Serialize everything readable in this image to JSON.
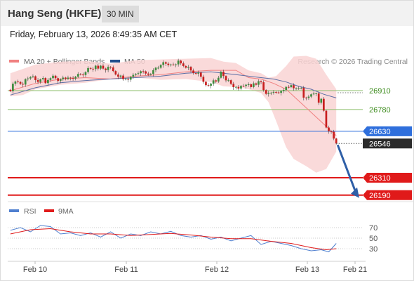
{
  "header": {
    "title": "Hang Seng (HKFE)",
    "timeframe": "30 MIN"
  },
  "datetime": "Friday, February 13, 2026 8:49:35 AM CET",
  "colors": {
    "bollinger_fill": "#f9d4d4",
    "ma20": "#f08080",
    "ma50": "#5b6ea5",
    "candle_up": "#3d8c3d",
    "candle_down": "#c81e1e",
    "resistance": "#8bbf6a",
    "pivot": "#2f6fdc",
    "support": "#e01a1a",
    "last_price": "#2b2b2b",
    "rsi": "#4f7fcf",
    "rsi_ma": "#e01a1a",
    "arrow": "#2f5fa7"
  },
  "chart_data": [
    {
      "type": "candlestick",
      "legend": [
        {
          "name": "MA 20 + Bollinger Bands",
          "color": "#f08080"
        },
        {
          "name": "MA 50",
          "color": "#1f4e8c"
        }
      ],
      "copyright": "Research © 2026 Trading Central",
      "x_ticks": [
        "Feb 10",
        "Feb 11",
        "Feb 12",
        "Feb 13",
        "Feb 21"
      ],
      "y_range": [
        26160,
        27070
      ],
      "levels": [
        {
          "label": "26910",
          "value": 26910,
          "kind": "resistance"
        },
        {
          "label": "26780",
          "value": 26780,
          "kind": "resistance"
        },
        {
          "label": "26630",
          "value": 26630,
          "kind": "pivot"
        },
        {
          "label": "26310",
          "value": 26310,
          "kind": "support"
        },
        {
          "label": "26190",
          "value": 26190,
          "kind": "support"
        }
      ],
      "last_price": {
        "label": "26546",
        "value": 26546
      },
      "ma20": [
        [
          0,
          26910
        ],
        [
          10,
          26960
        ],
        [
          20,
          26990
        ],
        [
          30,
          27000
        ],
        [
          40,
          26990
        ],
        [
          50,
          27010
        ],
        [
          60,
          27020
        ],
        [
          70,
          27040
        ],
        [
          80,
          27050
        ],
        [
          90,
          27050
        ],
        [
          95,
          27000
        ],
        [
          100,
          26990
        ],
        [
          105,
          26960
        ],
        [
          110,
          26920
        ],
        [
          115,
          26840
        ],
        [
          120,
          26760
        ],
        [
          125,
          26680
        ],
        [
          130,
          26600
        ]
      ],
      "ma50": [
        [
          0,
          26880
        ],
        [
          10,
          26930
        ],
        [
          20,
          26965
        ],
        [
          30,
          26980
        ],
        [
          40,
          26990
        ],
        [
          50,
          27000
        ],
        [
          60,
          27010
        ],
        [
          70,
          27030
        ],
        [
          80,
          27040
        ],
        [
          90,
          27020
        ],
        [
          95,
          27010
        ],
        [
          100,
          27000
        ],
        [
          105,
          26990
        ],
        [
          110,
          26970
        ],
        [
          115,
          26940
        ],
        [
          120,
          26920
        ],
        [
          125,
          26885
        ],
        [
          130,
          26860
        ]
      ],
      "bollinger_upper": [
        [
          0,
          27030
        ],
        [
          5,
          27060
        ],
        [
          10,
          27090
        ],
        [
          15,
          27100
        ],
        [
          20,
          27110
        ],
        [
          30,
          27115
        ],
        [
          40,
          27095
        ],
        [
          50,
          27120
        ],
        [
          60,
          27125
        ],
        [
          70,
          27130
        ],
        [
          80,
          27135
        ],
        [
          85,
          27110
        ],
        [
          90,
          27100
        ],
        [
          95,
          27050
        ],
        [
          100,
          27030
        ],
        [
          103,
          27000
        ],
        [
          106,
          27010
        ],
        [
          110,
          27080
        ],
        [
          113,
          27145
        ],
        [
          118,
          27150
        ],
        [
          122,
          27130
        ],
        [
          126,
          27020
        ],
        [
          130,
          26920
        ]
      ],
      "bollinger_lower": [
        [
          0,
          26870
        ],
        [
          5,
          26880
        ],
        [
          10,
          26920
        ],
        [
          15,
          26935
        ],
        [
          20,
          26950
        ],
        [
          30,
          26965
        ],
        [
          40,
          26990
        ],
        [
          50,
          27000
        ],
        [
          60,
          26985
        ],
        [
          70,
          26990
        ],
        [
          80,
          26970
        ],
        [
          85,
          26940
        ],
        [
          90,
          26935
        ],
        [
          95,
          26920
        ],
        [
          100,
          26895
        ],
        [
          103,
          26830
        ],
        [
          106,
          26700
        ],
        [
          110,
          26520
        ],
        [
          113,
          26440
        ],
        [
          118,
          26390
        ],
        [
          122,
          26345
        ],
        [
          126,
          26370
        ],
        [
          130,
          26490
        ]
      ],
      "closes": [
        26906,
        26958,
        26973,
        26970,
        26957,
        26952,
        26989,
        26994,
        27004,
        27009,
        26983,
        26970,
        26988,
        26997,
        26962,
        26984,
        26996,
        27013,
        26996,
        26977,
        26989,
        27000,
        26991,
        27000,
        26999,
        26993,
        27006,
        27025,
        27021,
        27018,
        27038,
        27066,
        27061,
        27059,
        27082,
        27062,
        27082,
        27062,
        27052,
        27074,
        27070,
        27045,
        27021,
        27006,
        27014,
        26989,
        26992,
        26986,
        27005,
        27019,
        27025,
        27030,
        27044,
        27043,
        27028,
        27020,
        27026,
        27051,
        27068,
        27068,
        27087,
        27106,
        27096,
        27086,
        27090,
        27089,
        27091,
        27117,
        27098,
        27080,
        27068,
        27074,
        27049,
        27031,
        27027,
        27035,
        27006,
        26971,
        26948,
        26944,
        26958,
        26981,
        26973,
        26999,
        27041,
        27011,
        26981,
        26982,
        26957,
        26934,
        26936,
        26924,
        26943,
        26942,
        26951,
        26954,
        26935,
        26960,
        26951,
        26975,
        26968,
        26914,
        26888,
        26896,
        26896,
        26901,
        26898,
        26895,
        26907,
        26915,
        26936,
        26934,
        26948,
        26927,
        26927,
        26927,
        26930,
        26862,
        26860,
        26869,
        26885,
        26890,
        26891,
        26827,
        26854,
        26772,
        26656,
        26630,
        26627,
        26580,
        26546
      ]
    },
    {
      "type": "line",
      "legend": [
        {
          "name": "RSI",
          "color": "#4f7fcf"
        },
        {
          "name": "9MA",
          "color": "#e01a1a"
        }
      ],
      "y_ticks": [
        "70",
        "50",
        "30"
      ],
      "y_range": [
        10,
        90
      ],
      "rsi": [
        [
          0,
          65
        ],
        [
          4,
          70
        ],
        [
          8,
          62
        ],
        [
          12,
          74
        ],
        [
          16,
          72
        ],
        [
          20,
          58
        ],
        [
          24,
          60
        ],
        [
          28,
          55
        ],
        [
          32,
          60
        ],
        [
          36,
          52
        ],
        [
          40,
          62
        ],
        [
          44,
          50
        ],
        [
          48,
          58
        ],
        [
          52,
          55
        ],
        [
          56,
          62
        ],
        [
          60,
          58
        ],
        [
          64,
          63
        ],
        [
          68,
          55
        ],
        [
          72,
          52
        ],
        [
          76,
          55
        ],
        [
          80,
          48
        ],
        [
          84,
          52
        ],
        [
          88,
          45
        ],
        [
          92,
          50
        ],
        [
          96,
          55
        ],
        [
          100,
          38
        ],
        [
          104,
          44
        ],
        [
          108,
          40
        ],
        [
          112,
          36
        ],
        [
          116,
          30
        ],
        [
          120,
          26
        ],
        [
          124,
          28
        ],
        [
          127,
          24
        ],
        [
          130,
          40
        ]
      ],
      "rsi_ma": [
        [
          0,
          58
        ],
        [
          8,
          66
        ],
        [
          16,
          68
        ],
        [
          24,
          62
        ],
        [
          32,
          58
        ],
        [
          40,
          58
        ],
        [
          48,
          55
        ],
        [
          56,
          57
        ],
        [
          64,
          59
        ],
        [
          72,
          56
        ],
        [
          80,
          52
        ],
        [
          88,
          49
        ],
        [
          96,
          49
        ],
        [
          104,
          44
        ],
        [
          112,
          40
        ],
        [
          120,
          32
        ],
        [
          126,
          28
        ],
        [
          130,
          30
        ]
      ]
    }
  ]
}
